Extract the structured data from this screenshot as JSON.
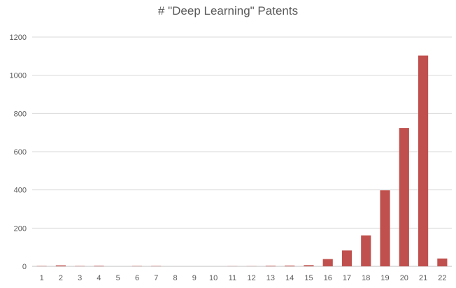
{
  "chart_data": {
    "type": "bar",
    "title": "# \"Deep Learning\" Patents",
    "xlabel": "",
    "ylabel": "",
    "categories": [
      "1",
      "2",
      "3",
      "4",
      "5",
      "6",
      "7",
      "8",
      "9",
      "10",
      "11",
      "12",
      "13",
      "14",
      "15",
      "16",
      "17",
      "18",
      "19",
      "20",
      "21",
      "22"
    ],
    "values": [
      2,
      5,
      2,
      3,
      0,
      2,
      2,
      0,
      0,
      0,
      1,
      1,
      3,
      4,
      6,
      38,
      83,
      162,
      398,
      724,
      1103,
      41
    ],
    "ylim": [
      0,
      1200
    ],
    "yticks": [
      0,
      200,
      400,
      600,
      800,
      1000,
      1200
    ],
    "grid": true,
    "legend": "none",
    "bar_color": "#c0504d"
  }
}
